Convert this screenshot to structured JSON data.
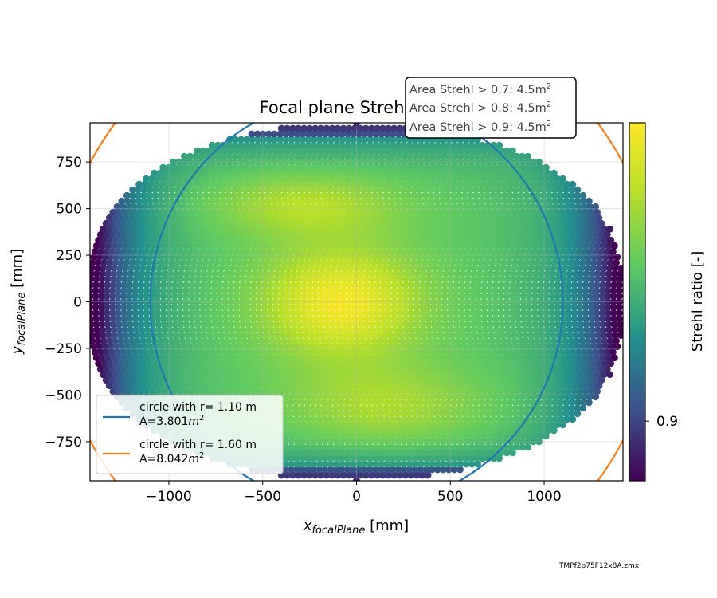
{
  "chart_data": {
    "type": "heatmap",
    "title": "Focal plane Strehl ratio",
    "xlabel": {
      "main": "x",
      "sub": "focalPlane",
      "unit": " [mm]"
    },
    "ylabel": {
      "main": "y",
      "sub": "focalPlane",
      "unit": " [mm]"
    },
    "xlim": [
      -1420,
      1420
    ],
    "ylim": [
      -960,
      960
    ],
    "x_ticks": [
      -1000,
      -500,
      0,
      500,
      1000
    ],
    "x_tick_labels": [
      "−1000",
      "−500",
      "0",
      "500",
      "1000"
    ],
    "y_ticks": [
      750,
      500,
      250,
      0,
      -250,
      -500,
      -750
    ],
    "y_tick_labels": [
      "750",
      "500",
      "250",
      "0",
      "−250",
      "−500",
      "−750"
    ],
    "grid": true,
    "colorbar": {
      "label": "Strehl ratio [-]",
      "ticks": [
        0.9
      ],
      "tick_labels": [
        "0.9"
      ],
      "range": [
        0.88,
        1.0
      ],
      "colormap": [
        "#440154",
        "#3b528b",
        "#21918c",
        "#5ec962",
        "#b5de2b",
        "#fde725"
      ]
    },
    "field": {
      "x_half_width_at_center": 1420,
      "y_half_height_at_center": 960,
      "point_spacing": 30
    },
    "circles": [
      {
        "radius_m": 1.1,
        "color": "#1f77b4"
      },
      {
        "radius_m": 1.6,
        "color": "#ff7f0e"
      }
    ],
    "legend": {
      "placement": "lower-left",
      "entries": [
        {
          "line1": "circle with r= 1.10 m",
          "line2_prefix": "A=3.801",
          "line2_unit": "m",
          "line2_exp": "2",
          "color": "#1f77b4"
        },
        {
          "line1": "circle with r= 1.60 m",
          "line2_prefix": "A=8.042",
          "line2_unit": "m",
          "line2_exp": "2",
          "color": "#ff7f0e"
        }
      ]
    },
    "annotation": {
      "placement": "top-right",
      "lines": [
        {
          "text": "Area Strehl > 0.7: 4.5m",
          "exp": "2"
        },
        {
          "text": "Area Strehl > 0.8: 4.5m",
          "exp": "2"
        },
        {
          "text": "Area Strehl > 0.9: 4.5m",
          "exp": "2"
        }
      ]
    },
    "footnote": "TMPf2p75F12x8A.zmx"
  }
}
